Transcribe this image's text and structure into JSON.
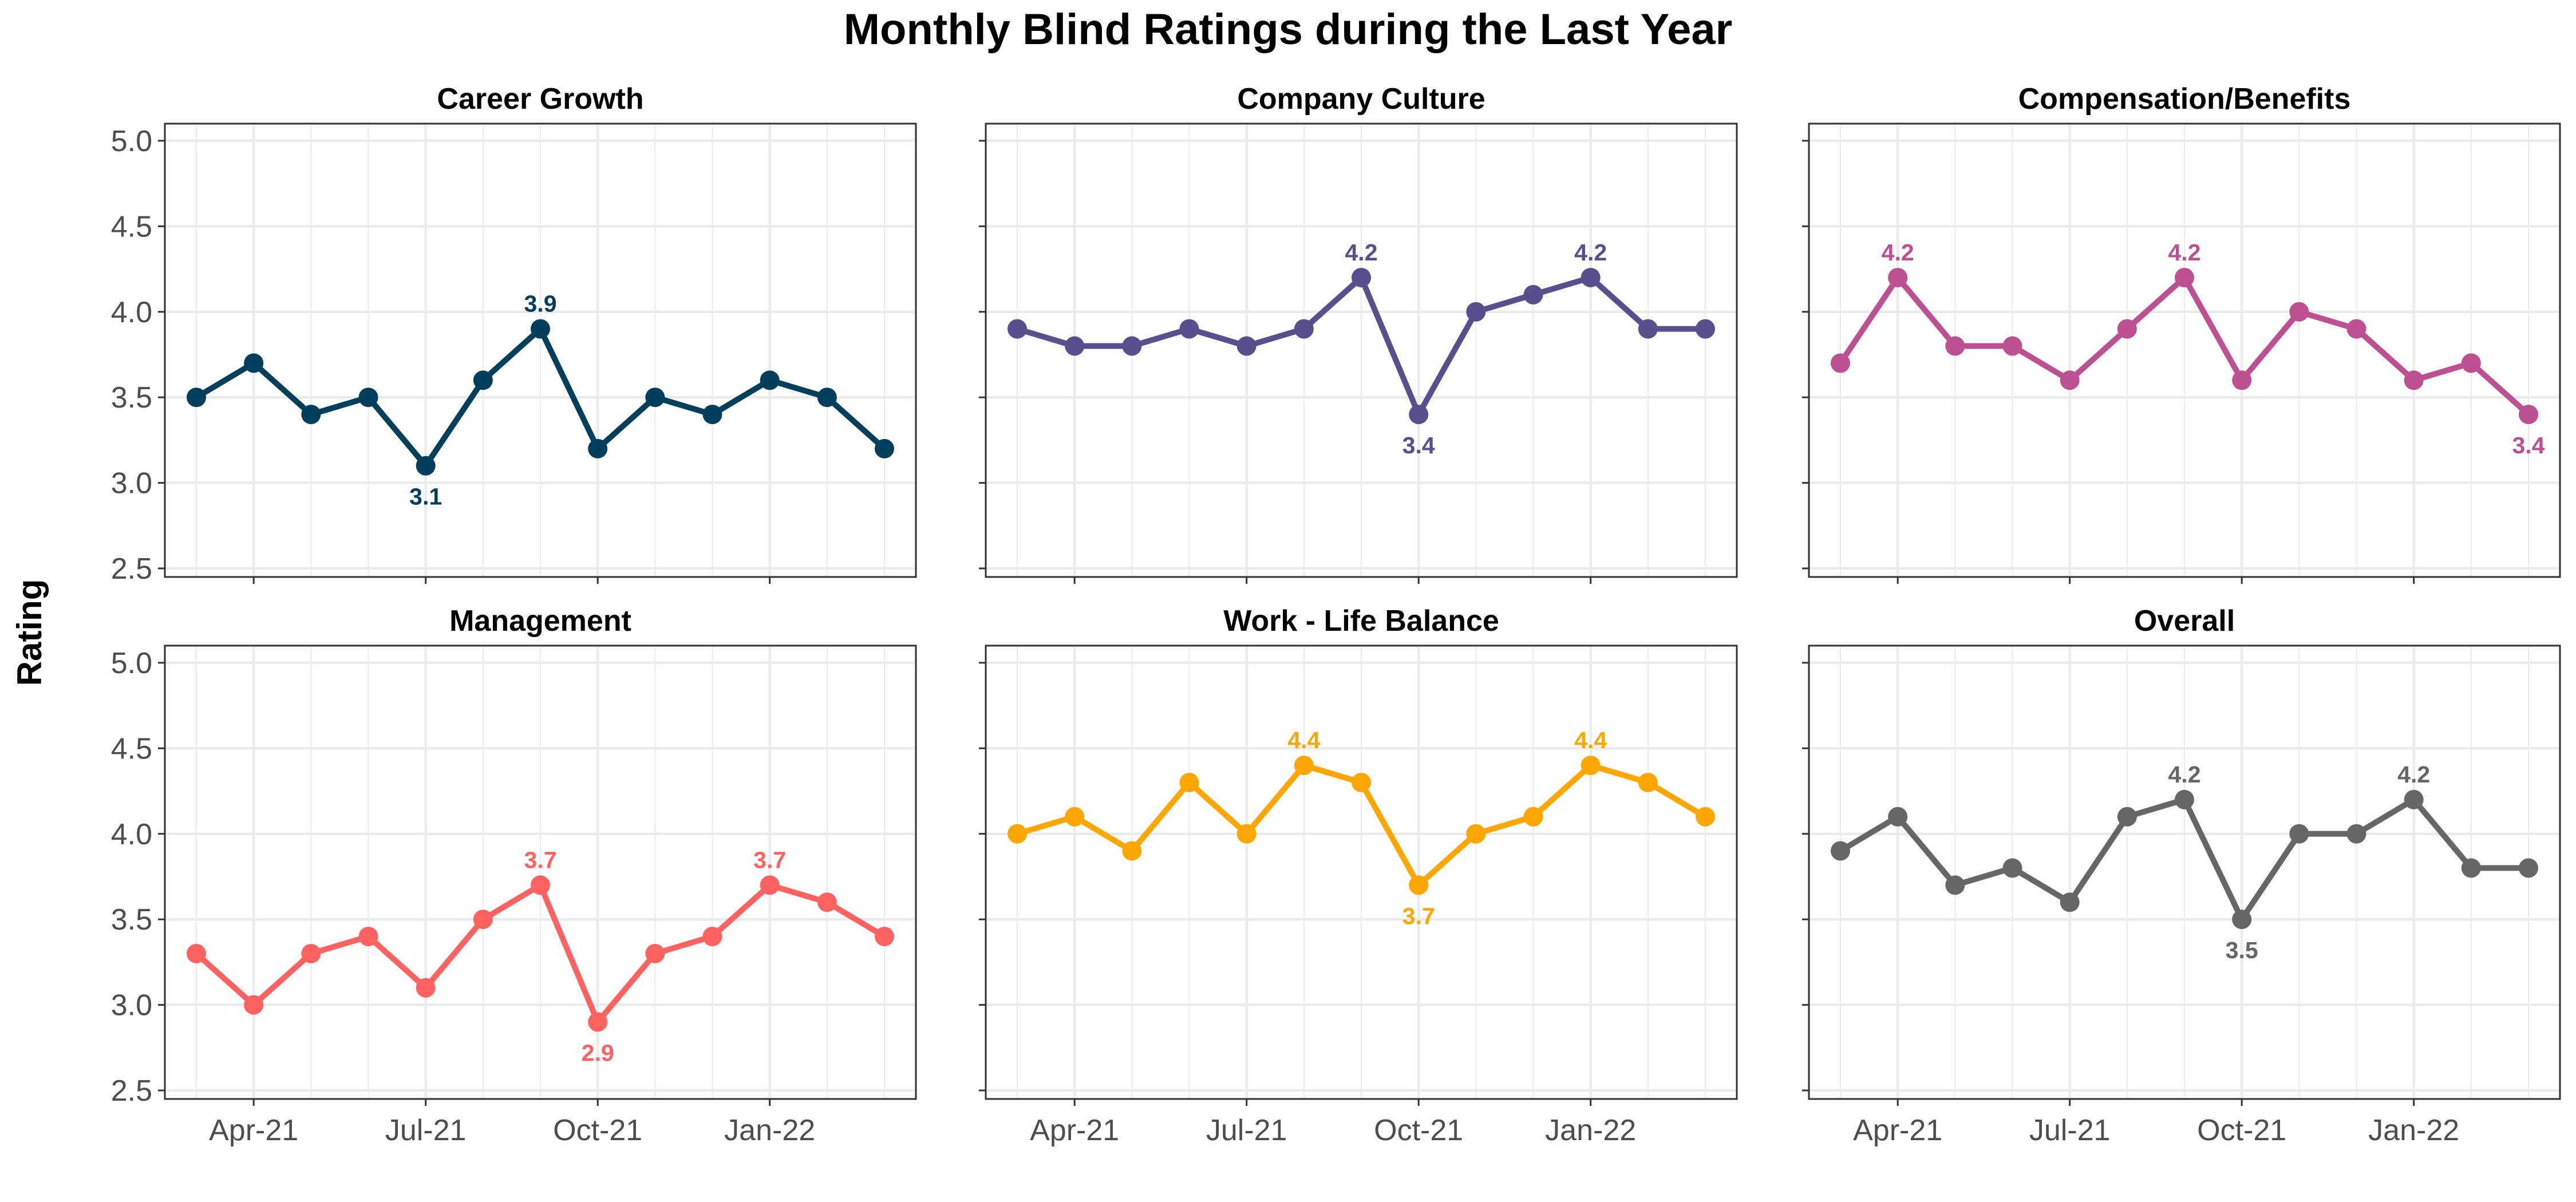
{
  "chart_data": {
    "type": "line",
    "title": "Monthly Blind Ratings during the Last Year",
    "ylabel": "Rating",
    "xlabel": "",
    "ylim": [
      2.45,
      5.1
    ],
    "y_ticks": [
      "2.5",
      "3.0",
      "3.5",
      "4.0",
      "4.5",
      "5.0"
    ],
    "x": [
      "2021-03",
      "2021-04",
      "2021-05",
      "2021-06",
      "2021-07",
      "2021-08",
      "2021-09",
      "2021-10",
      "2021-11",
      "2021-12",
      "2022-01",
      "2022-02",
      "2022-03"
    ],
    "x_ticks": [
      {
        "x": "2021-04",
        "label": "Apr-21"
      },
      {
        "x": "2021-07",
        "label": "Jul-21"
      },
      {
        "x": "2021-10",
        "label": "Oct-21"
      },
      {
        "x": "2022-01",
        "label": "Jan-22"
      }
    ],
    "grid": true,
    "layout": "2x3 facets",
    "series": [
      {
        "name": "Career Growth",
        "color": "#003f5c",
        "values": [
          3.5,
          3.7,
          3.4,
          3.5,
          3.1,
          3.6,
          3.9,
          3.2,
          3.5,
          3.4,
          3.6,
          3.5,
          3.2
        ],
        "labels": [
          {
            "index": 4,
            "text": "3.1",
            "pos": "below"
          },
          {
            "index": 6,
            "text": "3.9",
            "pos": "above"
          }
        ]
      },
      {
        "name": "Company Culture",
        "color": "#58508d",
        "values": [
          3.9,
          3.8,
          3.8,
          3.9,
          3.8,
          3.9,
          4.2,
          3.4,
          4.0,
          4.1,
          4.2,
          3.9,
          3.9
        ],
        "labels": [
          {
            "index": 6,
            "text": "4.2",
            "pos": "above"
          },
          {
            "index": 7,
            "text": "3.4",
            "pos": "below"
          },
          {
            "index": 10,
            "text": "4.2",
            "pos": "above"
          }
        ]
      },
      {
        "name": "Compensation/Benefits",
        "color": "#bc5090",
        "values": [
          3.7,
          4.2,
          3.8,
          3.8,
          3.6,
          3.9,
          4.2,
          3.6,
          4.0,
          3.9,
          3.6,
          3.7,
          3.4
        ],
        "labels": [
          {
            "index": 1,
            "text": "4.2",
            "pos": "above"
          },
          {
            "index": 6,
            "text": "4.2",
            "pos": "above"
          },
          {
            "index": 12,
            "text": "3.4",
            "pos": "below"
          }
        ]
      },
      {
        "name": "Management",
        "color": "#ff6361",
        "values": [
          3.3,
          3.0,
          3.3,
          3.4,
          3.1,
          3.5,
          3.7,
          2.9,
          3.3,
          3.4,
          3.7,
          3.6,
          3.4
        ],
        "labels": [
          {
            "index": 6,
            "text": "3.7",
            "pos": "above"
          },
          {
            "index": 7,
            "text": "2.9",
            "pos": "below"
          },
          {
            "index": 10,
            "text": "3.7",
            "pos": "above"
          }
        ]
      },
      {
        "name": "Work - Life Balance",
        "color": "#ffa600",
        "values": [
          4.0,
          4.1,
          3.9,
          4.3,
          4.0,
          4.4,
          4.3,
          3.7,
          4.0,
          4.1,
          4.4,
          4.3,
          4.1
        ],
        "labels": [
          {
            "index": 5,
            "text": "4.4",
            "pos": "above"
          },
          {
            "index": 7,
            "text": "3.7",
            "pos": "below"
          },
          {
            "index": 10,
            "text": "4.4",
            "pos": "above"
          }
        ]
      },
      {
        "name": "Overall",
        "color": "#666666",
        "values": [
          3.9,
          4.1,
          3.7,
          3.8,
          3.6,
          4.1,
          4.2,
          3.5,
          4.0,
          4.0,
          4.2,
          3.8,
          3.8
        ],
        "labels": [
          {
            "index": 6,
            "text": "4.2",
            "pos": "above"
          },
          {
            "index": 7,
            "text": "3.5",
            "pos": "below"
          },
          {
            "index": 10,
            "text": "4.2",
            "pos": "above"
          }
        ]
      }
    ]
  }
}
